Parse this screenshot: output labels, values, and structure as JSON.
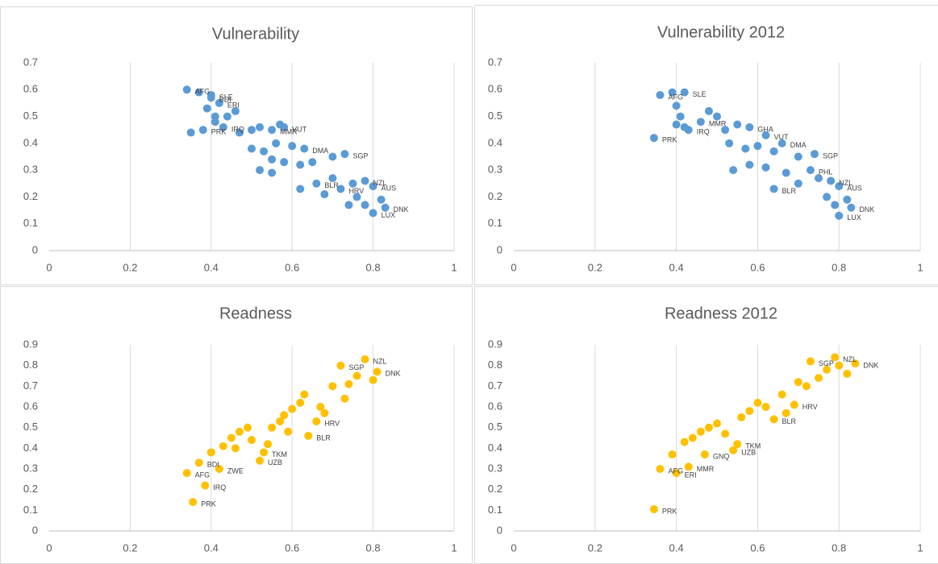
{
  "chart_data": [
    {
      "type": "scatter",
      "title": "Vulnerability",
      "color": "#5b9bd5",
      "grid": "x",
      "xlim": [
        0,
        1
      ],
      "xticks": [
        0,
        0.2,
        0.4,
        0.6,
        0.8,
        1
      ],
      "ylim": [
        0,
        0.7
      ],
      "yticks": [
        0,
        0.1,
        0.2,
        0.3,
        0.4,
        0.5,
        0.6,
        0.7
      ],
      "x": [
        0.34,
        0.37,
        0.4,
        0.4,
        0.42,
        0.39,
        0.41,
        0.44,
        0.46,
        0.41,
        0.35,
        0.38,
        0.43,
        0.47,
        0.5,
        0.52,
        0.55,
        0.57,
        0.58,
        0.5,
        0.53,
        0.56,
        0.6,
        0.63,
        0.55,
        0.58,
        0.62,
        0.65,
        0.7,
        0.73,
        0.52,
        0.55,
        0.62,
        0.66,
        0.68,
        0.7,
        0.72,
        0.75,
        0.78,
        0.8,
        0.76,
        0.78,
        0.8,
        0.83,
        0.74,
        0.82
      ],
      "values": [
        0.6,
        0.59,
        0.58,
        0.57,
        0.55,
        0.53,
        0.5,
        0.5,
        0.52,
        0.48,
        0.44,
        0.45,
        0.46,
        0.44,
        0.45,
        0.46,
        0.45,
        0.47,
        0.46,
        0.38,
        0.37,
        0.4,
        0.39,
        0.38,
        0.34,
        0.33,
        0.32,
        0.33,
        0.35,
        0.36,
        0.3,
        0.29,
        0.23,
        0.25,
        0.21,
        0.27,
        0.23,
        0.25,
        0.26,
        0.24,
        0.2,
        0.17,
        0.14,
        0.16,
        0.17,
        0.19
      ],
      "point_labels": [
        "AFG",
        null,
        "SLE",
        "BDI",
        "ERI",
        null,
        null,
        null,
        null,
        null,
        null,
        "PRK",
        "IRQ",
        null,
        null,
        null,
        "MMR",
        null,
        "VUT",
        null,
        null,
        null,
        null,
        "DMA",
        null,
        null,
        null,
        null,
        null,
        "SGP",
        null,
        null,
        null,
        "BLR",
        null,
        null,
        "HRV",
        null,
        "NZL",
        "AUS",
        null,
        null,
        "LUX",
        "DNK",
        null,
        null
      ]
    },
    {
      "type": "scatter",
      "title": "Vulnerability 2012",
      "color": "#5b9bd5",
      "grid": "x",
      "xlim": [
        0,
        1
      ],
      "xticks": [
        0,
        0.2,
        0.4,
        0.6,
        0.8,
        1
      ],
      "ylim": [
        0,
        0.7
      ],
      "yticks": [
        0,
        0.1,
        0.2,
        0.3,
        0.4,
        0.5,
        0.6,
        0.7
      ],
      "x": [
        0.345,
        0.36,
        0.42,
        0.39,
        0.4,
        0.41,
        0.4,
        0.42,
        0.43,
        0.46,
        0.48,
        0.5,
        0.52,
        0.55,
        0.58,
        0.62,
        0.53,
        0.57,
        0.6,
        0.64,
        0.66,
        0.7,
        0.54,
        0.58,
        0.62,
        0.67,
        0.74,
        0.73,
        0.64,
        0.7,
        0.75,
        0.78,
        0.8,
        0.77,
        0.79,
        0.8,
        0.83,
        0.82
      ],
      "values": [
        0.42,
        0.58,
        0.59,
        0.59,
        0.54,
        0.5,
        0.47,
        0.46,
        0.45,
        0.48,
        0.52,
        0.5,
        0.45,
        0.47,
        0.46,
        0.43,
        0.4,
        0.38,
        0.39,
        0.37,
        0.4,
        0.35,
        0.3,
        0.32,
        0.31,
        0.29,
        0.36,
        0.3,
        0.23,
        0.25,
        0.27,
        0.26,
        0.24,
        0.2,
        0.17,
        0.13,
        0.16,
        0.19
      ],
      "point_labels": [
        "PRK",
        "AFG",
        "SLE",
        null,
        null,
        null,
        null,
        null,
        "IRQ",
        "MMR",
        null,
        null,
        null,
        null,
        "GHA",
        "VUT",
        null,
        null,
        null,
        null,
        "DMA",
        null,
        null,
        null,
        null,
        null,
        "SGP",
        "PHL",
        "BLR",
        null,
        null,
        "NZL",
        "AUS",
        null,
        null,
        "LUX",
        "DNK",
        null
      ]
    },
    {
      "type": "scatter",
      "title": "Readness",
      "color": "#ffc000",
      "grid": "x",
      "xlim": [
        0,
        1
      ],
      "xticks": [
        0,
        0.2,
        0.4,
        0.6,
        0.8,
        1
      ],
      "ylim": [
        0,
        0.9
      ],
      "yticks": [
        0,
        0.1,
        0.2,
        0.3,
        0.4,
        0.5,
        0.6,
        0.7,
        0.8,
        0.9
      ],
      "x": [
        0.34,
        0.385,
        0.355,
        0.37,
        0.42,
        0.4,
        0.43,
        0.45,
        0.47,
        0.49,
        0.46,
        0.5,
        0.52,
        0.53,
        0.55,
        0.57,
        0.54,
        0.58,
        0.6,
        0.62,
        0.59,
        0.64,
        0.66,
        0.68,
        0.63,
        0.7,
        0.72,
        0.74,
        0.76,
        0.78,
        0.81,
        0.8,
        0.73,
        0.67
      ],
      "values": [
        0.28,
        0.22,
        0.14,
        0.33,
        0.3,
        0.38,
        0.41,
        0.45,
        0.48,
        0.5,
        0.4,
        0.44,
        0.34,
        0.38,
        0.5,
        0.53,
        0.42,
        0.56,
        0.59,
        0.62,
        0.48,
        0.46,
        0.53,
        0.57,
        0.66,
        0.7,
        0.8,
        0.71,
        0.75,
        0.83,
        0.77,
        0.73,
        0.64,
        0.6
      ],
      "point_labels": [
        "AFG",
        "IRQ",
        "PRK",
        "BDI",
        "ZWE",
        null,
        null,
        null,
        null,
        null,
        null,
        null,
        "UZB",
        "TKM",
        null,
        null,
        null,
        null,
        null,
        null,
        null,
        "BLR",
        "HRV",
        null,
        null,
        null,
        "SGP",
        null,
        null,
        "NZL",
        "DNK",
        null,
        null,
        null
      ]
    },
    {
      "type": "scatter",
      "title": "Readness 2012",
      "color": "#ffc000",
      "grid": "x",
      "xlim": [
        0,
        1
      ],
      "xticks": [
        0,
        0.2,
        0.4,
        0.6,
        0.8,
        1
      ],
      "ylim": [
        0,
        0.9
      ],
      "yticks": [
        0,
        0.1,
        0.2,
        0.3,
        0.4,
        0.5,
        0.6,
        0.7,
        0.8,
        0.9
      ],
      "x": [
        0.345,
        0.36,
        0.4,
        0.43,
        0.47,
        0.54,
        0.55,
        0.39,
        0.42,
        0.44,
        0.46,
        0.48,
        0.5,
        0.52,
        0.56,
        0.58,
        0.6,
        0.62,
        0.64,
        0.66,
        0.69,
        0.7,
        0.72,
        0.73,
        0.75,
        0.77,
        0.79,
        0.8,
        0.84,
        0.82,
        0.67
      ],
      "values": [
        0.105,
        0.3,
        0.28,
        0.31,
        0.37,
        0.39,
        0.42,
        0.37,
        0.43,
        0.45,
        0.48,
        0.5,
        0.52,
        0.47,
        0.55,
        0.58,
        0.62,
        0.6,
        0.54,
        0.66,
        0.61,
        0.72,
        0.7,
        0.82,
        0.74,
        0.78,
        0.84,
        0.8,
        0.81,
        0.76,
        0.57
      ],
      "point_labels": [
        "PRK",
        "AFG",
        "ERI",
        "MMR",
        "GNQ",
        "UZB",
        "TKM",
        null,
        null,
        null,
        null,
        null,
        null,
        null,
        null,
        null,
        null,
        null,
        "BLR",
        null,
        "HRV",
        null,
        null,
        "SGP",
        null,
        null,
        "NZL",
        null,
        "DNK",
        null,
        null
      ]
    }
  ]
}
